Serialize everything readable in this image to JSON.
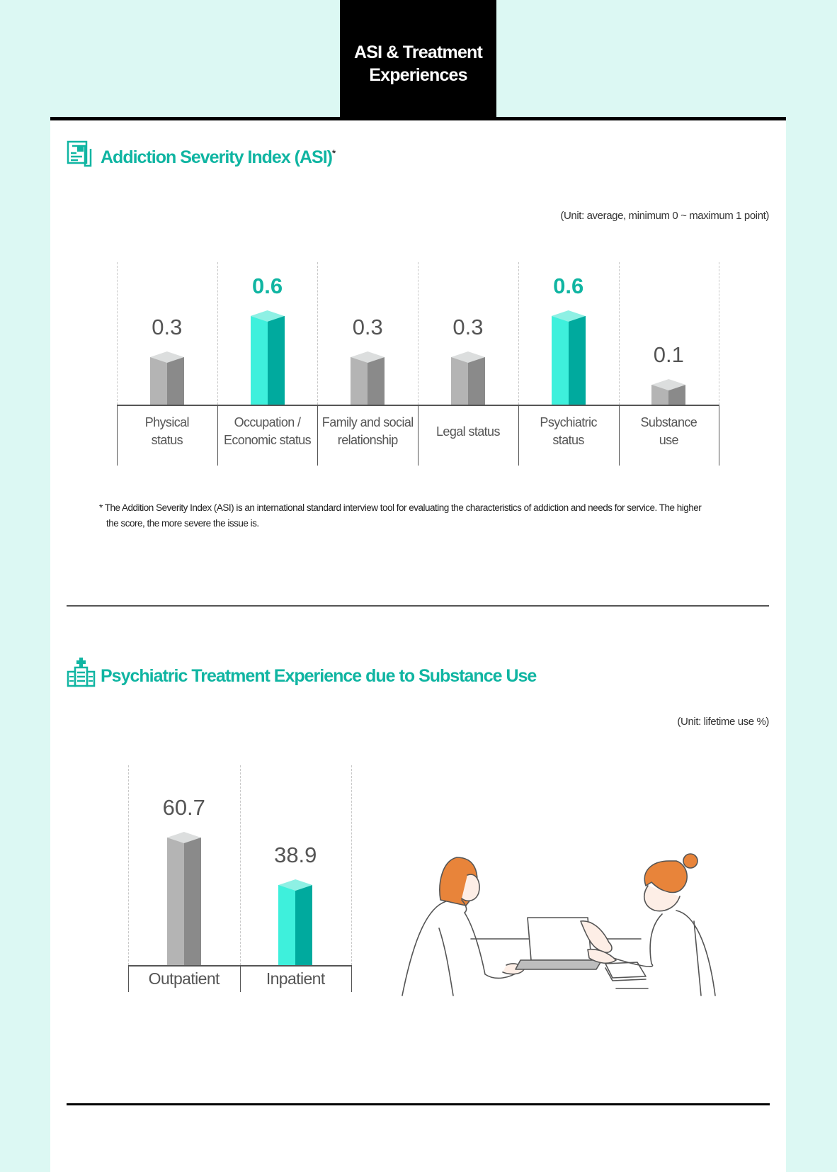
{
  "header": {
    "title_line1": "ASI & Treatment",
    "title_line2": "Experiences"
  },
  "colors": {
    "accent": "#10b5a2",
    "bar_highlight_front": "#3ef0dc",
    "bar_highlight_side": "#00aa9e",
    "bar_gray_front": "#b4b4b4",
    "bar_gray_side": "#8a8a8a",
    "background": "#dcf8f3"
  },
  "section1": {
    "title": "Addiction Severity Index (ASI)",
    "title_suffix": "*",
    "icon": "document-clipboard-icon",
    "unit": "(Unit: average, minimum 0 ~ maximum 1 point)",
    "footnote_line1": "* The Addition Severity Index (ASI) is an international standard interview tool for evaluating the characteristics of addiction and needs for service. The higher",
    "footnote_line2": "the score, the more severe the issue is."
  },
  "section2": {
    "title": "Psychiatric Treatment Experience due to Substance Use",
    "icon": "hospital-icon",
    "unit": "(Unit: lifetime use %)",
    "illustration": "two-women-consultation-illustration"
  },
  "chart_data": [
    {
      "type": "bar",
      "title": "Addiction Severity Index (ASI)",
      "categories": [
        "Physical status",
        "Occupation / Economic status",
        "Family and social relationship",
        "Legal status",
        "Psychiatric status",
        "Substance use"
      ],
      "category_lines": [
        [
          "Physical",
          "status"
        ],
        [
          "Occupation /",
          "Economic status"
        ],
        [
          "Family and social",
          "relationship"
        ],
        [
          "Legal status"
        ],
        [
          "Psychiatric",
          "status"
        ],
        [
          "Substance",
          "use"
        ]
      ],
      "values": [
        0.3,
        0.6,
        0.3,
        0.3,
        0.6,
        0.1
      ],
      "value_labels": [
        "0.3",
        "0.6",
        "0.3",
        "0.3",
        "0.6",
        "0.1"
      ],
      "highlighted": [
        false,
        true,
        false,
        false,
        true,
        false
      ],
      "xlabel": "",
      "ylabel": "",
      "ylim": [
        0,
        1
      ],
      "unit": "average, minimum 0 ~ maximum 1 point",
      "grid": false,
      "legend": null
    },
    {
      "type": "bar",
      "title": "Psychiatric Treatment Experience due to Substance Use",
      "categories": [
        "Outpatient",
        "Inpatient"
      ],
      "values": [
        60.7,
        38.9
      ],
      "value_labels": [
        "60.7",
        "38.9"
      ],
      "highlighted": [
        false,
        true
      ],
      "xlabel": "",
      "ylabel": "",
      "ylim": [
        0,
        100
      ],
      "unit": "lifetime use %",
      "grid": false,
      "legend": null
    }
  ]
}
